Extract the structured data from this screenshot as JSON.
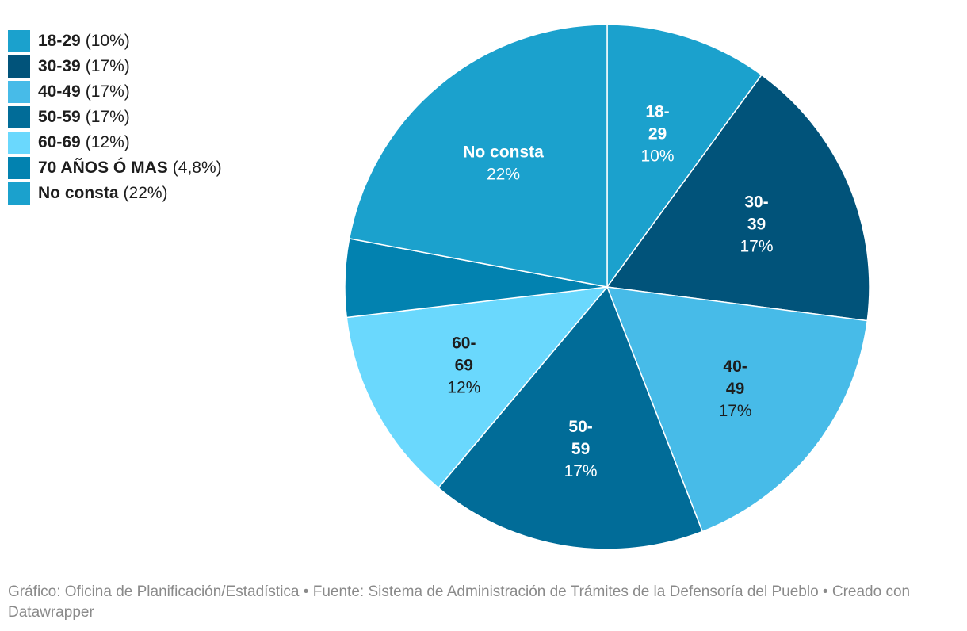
{
  "chart_data": {
    "type": "pie",
    "categories": [
      "18-29",
      "30-39",
      "40-49",
      "50-59",
      "60-69",
      "70 AÑOS Ó MAS",
      "No consta"
    ],
    "values": [
      10,
      17,
      17,
      17,
      12,
      4.8,
      22
    ],
    "value_labels": [
      "10%",
      "17%",
      "17%",
      "17%",
      "12%",
      "4,8%",
      "22%"
    ],
    "slice_labels": [
      {
        "name_lines": [
          "18-",
          "29"
        ],
        "value": "10%",
        "name_color": "#ffffff",
        "value_color": "#ffffff"
      },
      {
        "name_lines": [
          "30-",
          "39"
        ],
        "value": "17%",
        "name_color": "#ffffff",
        "value_color": "#ffffff"
      },
      {
        "name_lines": [
          "40-",
          "49"
        ],
        "value": "17%",
        "name_color": "#1d1d1d",
        "value_color": "#1d1d1d"
      },
      {
        "name_lines": [
          "50-",
          "59"
        ],
        "value": "17%",
        "name_color": "#ffffff",
        "value_color": "#ffffff"
      },
      {
        "name_lines": [
          "60-",
          "69"
        ],
        "value": "12%",
        "name_color": "#1d1d1d",
        "value_color": "#1d1d1d"
      },
      null,
      {
        "name_lines": [
          "No consta"
        ],
        "value": "22%",
        "name_color": "#ffffff",
        "value_color": "#ffffff"
      }
    ],
    "colors": [
      "#1ba1cd",
      "#01537a",
      "#47bbe8",
      "#016c98",
      "#6ad8fd",
      "#0282b0",
      "#1ba1cd"
    ],
    "legend": {
      "placement": "top-left",
      "items": [
        {
          "label": "18-29",
          "value": "(10%)"
        },
        {
          "label": "30-39",
          "value": "(17%)"
        },
        {
          "label": "40-49",
          "value": "(17%)"
        },
        {
          "label": "50-59",
          "value": "(17%)"
        },
        {
          "label": "60-69",
          "value": "(12%)"
        },
        {
          "label": "70 AÑOS Ó MAS",
          "value": "(4,8%)"
        },
        {
          "label": "No consta",
          "value": "(22%)"
        }
      ]
    }
  },
  "footer": {
    "credit": "Gráfico: Oficina de Planificación/Estadística",
    "source": "Fuente: Sistema de Administración de Trámites de la Defensoría del Pueblo",
    "tool": "Creado con Datawrapper"
  }
}
